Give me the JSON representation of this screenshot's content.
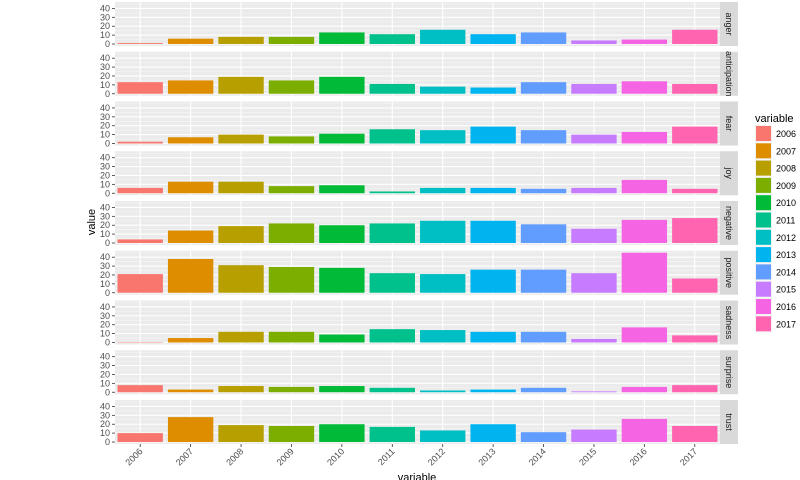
{
  "chart_data": {
    "type": "bar",
    "facet": "rows",
    "xlabel": "variable",
    "ylabel": "value",
    "ylim": [
      0,
      45
    ],
    "yticks": [
      0,
      10,
      20,
      30,
      40
    ],
    "grid": true,
    "legend": {
      "title": "variable",
      "placement": "right"
    },
    "categories": [
      "2006",
      "2007",
      "2008",
      "2009",
      "2010",
      "2011",
      "2012",
      "2013",
      "2014",
      "2015",
      "2016",
      "2017"
    ],
    "colors": [
      "#F8766D",
      "#DE8C00",
      "#B79F00",
      "#7CAE00",
      "#00BA38",
      "#00C08B",
      "#00BFC4",
      "#00B4F0",
      "#619CFF",
      "#C77CFF",
      "#F564E3",
      "#FF64B0"
    ],
    "panels": [
      {
        "name": "anger",
        "values": [
          1,
          6,
          8,
          8,
          13,
          11,
          16,
          11,
          13,
          4,
          5,
          16
        ]
      },
      {
        "name": "anticipation",
        "values": [
          13,
          15,
          19,
          15,
          19,
          11,
          8,
          7,
          13,
          11,
          14,
          11
        ]
      },
      {
        "name": "fear",
        "values": [
          2,
          7,
          10,
          8,
          11,
          16,
          15,
          19,
          15,
          10,
          13,
          19
        ]
      },
      {
        "name": "joy",
        "values": [
          6,
          13,
          13,
          8,
          9,
          2,
          6,
          6,
          5,
          6,
          15,
          5
        ]
      },
      {
        "name": "negative",
        "values": [
          4,
          14,
          19,
          22,
          20,
          22,
          25,
          25,
          21,
          16,
          26,
          28
        ]
      },
      {
        "name": "positive",
        "values": [
          21,
          38,
          31,
          29,
          28,
          22,
          21,
          26,
          26,
          22,
          45,
          16
        ]
      },
      {
        "name": "sadness",
        "values": [
          0.5,
          5,
          12,
          12,
          9,
          15,
          14,
          12,
          12,
          4,
          17,
          8
        ]
      },
      {
        "name": "surprise",
        "values": [
          8,
          3,
          7,
          6,
          7,
          5,
          2,
          3,
          5,
          1,
          6,
          8
        ]
      },
      {
        "name": "trust",
        "values": [
          10,
          28,
          19,
          18,
          20,
          17,
          13,
          20,
          11,
          14,
          26,
          18
        ]
      }
    ]
  }
}
